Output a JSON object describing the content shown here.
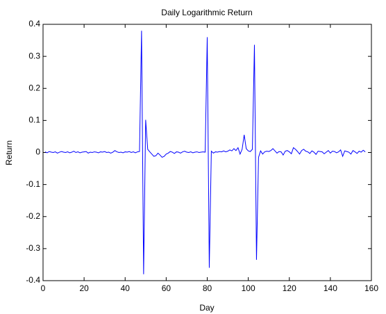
{
  "chart_data": {
    "type": "line",
    "title": "Daily Logarithmic Return",
    "xlabel": "Day",
    "ylabel": "Return",
    "x": [
      1,
      2,
      3,
      4,
      5,
      6,
      7,
      8,
      9,
      10,
      11,
      12,
      13,
      14,
      15,
      16,
      17,
      18,
      19,
      20,
      21,
      22,
      23,
      24,
      25,
      26,
      27,
      28,
      29,
      30,
      31,
      32,
      33,
      34,
      35,
      36,
      37,
      38,
      39,
      40,
      41,
      42,
      43,
      44,
      45,
      46,
      47,
      48,
      49,
      50,
      51,
      52,
      53,
      54,
      55,
      56,
      57,
      58,
      59,
      60,
      61,
      62,
      63,
      64,
      65,
      66,
      67,
      68,
      69,
      70,
      71,
      72,
      73,
      74,
      75,
      76,
      77,
      78,
      79,
      80,
      81,
      82,
      83,
      84,
      85,
      86,
      87,
      88,
      89,
      90,
      91,
      92,
      93,
      94,
      95,
      96,
      97,
      98,
      99,
      100,
      101,
      102,
      103,
      104,
      105,
      106,
      107,
      108,
      109,
      110,
      111,
      112,
      113,
      114,
      115,
      116,
      117,
      118,
      119,
      120,
      121,
      122,
      123,
      124,
      125,
      126,
      127,
      128,
      129,
      130,
      131,
      132,
      133,
      134,
      135,
      136,
      137,
      138,
      139,
      140,
      141,
      142,
      143,
      144,
      145,
      146,
      147,
      148,
      149,
      150,
      151,
      152,
      153,
      154,
      155,
      156,
      157
    ],
    "series": [
      {
        "name": "Return",
        "color": "#0000ff",
        "values": [
          0.002,
          -0.001,
          0.003,
          0.001,
          0,
          0.002,
          -0.002,
          0.001,
          0.003,
          0.001,
          0,
          0.002,
          -0.001,
          0.001,
          0.004,
          0,
          0.002,
          -0.001,
          0.001,
          0.002,
          0.003,
          -0.002,
          0.001,
          0,
          0.002,
          0.001,
          -0.001,
          0.002,
          0.001,
          0.003,
          0,
          0.001,
          -0.002,
          0.001,
          0.006,
          0.002,
          0,
          0.001,
          -0.001,
          0.002,
          0.001,
          0.003,
          0,
          0.002,
          -0.001,
          0.002,
          0.003,
          0.38,
          -0.38,
          0.102,
          0.01,
          0.002,
          -0.005,
          -0.012,
          -0.01,
          -0.002,
          -0.008,
          -0.015,
          -0.012,
          -0.005,
          -0.002,
          0.003,
          0.001,
          -0.003,
          0.002,
          0.001,
          -0.002,
          0.002,
          0.004,
          0.001,
          0,
          0.002,
          -0.001,
          0.001,
          0.002,
          0,
          0.001,
          0.002,
          0.001,
          0.36,
          -0.36,
          0.004,
          -0.002,
          0.002,
          0.001,
          0.003,
          0.002,
          0.005,
          0.002,
          0.004,
          0.008,
          0.005,
          0.012,
          0.006,
          0.015,
          -0.005,
          0.01,
          0.055,
          0.012,
          0.005,
          0.003,
          0.01,
          0.336,
          -0.335,
          -0.015,
          0.005,
          -0.005,
          0.002,
          0.004,
          0.003,
          0.006,
          0.012,
          0.005,
          -0.002,
          0.003,
          0.002,
          -0.008,
          0.004,
          0.006,
          0.002,
          -0.004,
          0.015,
          0.01,
          0.003,
          -0.005,
          0.006,
          0.01,
          0.004,
          0.002,
          -0.003,
          0.005,
          0.001,
          -0.006,
          0.004,
          0.003,
          0.002,
          -0.004,
          0.001,
          0.006,
          -0.002,
          0.004,
          0.003,
          -0.001,
          0.002,
          0.008,
          -0.012,
          0.005,
          0.003,
          0.001,
          -0.005,
          0.006,
          0.002,
          -0.003,
          0.004,
          0.001,
          0.007,
          0.002
        ]
      }
    ],
    "xlim": [
      0,
      160
    ],
    "xticks": [
      0,
      20,
      40,
      60,
      80,
      100,
      120,
      140,
      160
    ],
    "ylim": [
      -0.4,
      0.4
    ],
    "yticks": [
      -0.4,
      -0.3,
      -0.2,
      -0.1,
      0,
      0.1,
      0.2,
      0.3,
      0.4
    ],
    "grid": false
  }
}
